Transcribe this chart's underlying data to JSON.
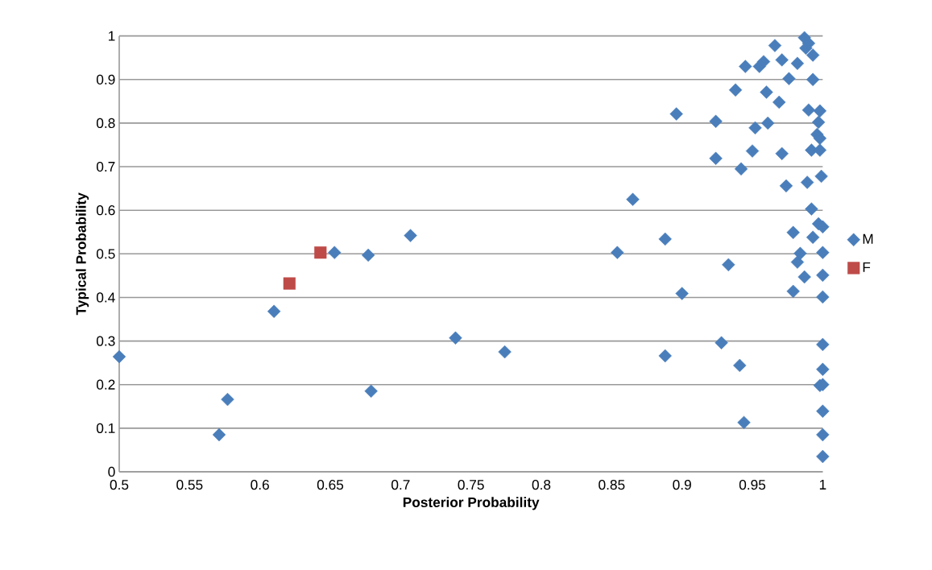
{
  "chart_data": {
    "type": "scatter",
    "xlabel": "Posterior Probability",
    "ylabel": "Typical Probability",
    "xlim": [
      0.5,
      1
    ],
    "ylim": [
      0,
      1
    ],
    "xticks": [
      0.5,
      0.55,
      0.6,
      0.65,
      0.7,
      0.75,
      0.8,
      0.85,
      0.9,
      0.95,
      1
    ],
    "yticks": [
      0,
      0.1,
      0.2,
      0.3,
      0.4,
      0.5,
      0.6,
      0.7,
      0.8,
      0.9,
      1
    ],
    "grid": "y",
    "legend": "right",
    "series": [
      {
        "name": "M",
        "color": "#4a7ebb",
        "marker": "diamond",
        "x": [
          0.5,
          0.577,
          0.571,
          0.61,
          0.653,
          0.677,
          0.679,
          0.707,
          0.739,
          0.774,
          0.854,
          0.865,
          0.888,
          0.888,
          0.896,
          0.9,
          0.966,
          0.987,
          0.99,
          0.988,
          0.993,
          0.945,
          0.955,
          0.958,
          0.971,
          0.982,
          0.976,
          0.993,
          0.938,
          0.96,
          0.969,
          0.924,
          0.952,
          0.961,
          0.99,
          0.998,
          0.997,
          0.996,
          0.998,
          0.992,
          0.998,
          0.95,
          0.971,
          0.924,
          0.942,
          0.974,
          0.989,
          0.999,
          0.992,
          0.997,
          1.0,
          0.979,
          0.993,
          0.984,
          0.982,
          1.0,
          0.933,
          0.987,
          1.0,
          0.979,
          1.0,
          0.928,
          1.0,
          0.941,
          1.0,
          0.998,
          1.0,
          0.944,
          1.0,
          1.0,
          1.0
        ],
        "values": [
          0.264,
          0.166,
          0.085,
          0.368,
          0.503,
          0.497,
          0.185,
          0.542,
          0.307,
          0.275,
          0.503,
          0.625,
          0.534,
          0.266,
          0.821,
          0.409,
          0.978,
          0.996,
          0.983,
          0.972,
          0.956,
          0.93,
          0.93,
          0.941,
          0.945,
          0.937,
          0.902,
          0.9,
          0.876,
          0.871,
          0.848,
          0.804,
          0.789,
          0.8,
          0.83,
          0.828,
          0.802,
          0.774,
          0.765,
          0.738,
          0.738,
          0.736,
          0.73,
          0.719,
          0.695,
          0.656,
          0.664,
          0.678,
          0.603,
          0.569,
          0.562,
          0.549,
          0.538,
          0.501,
          0.481,
          0.503,
          0.475,
          0.447,
          0.451,
          0.414,
          0.401,
          0.296,
          0.292,
          0.244,
          0.235,
          0.198,
          0.2,
          0.113,
          0.139,
          0.085,
          0.035
        ]
      },
      {
        "name": "F",
        "color": "#be4b48",
        "marker": "square",
        "x": [
          0.621,
          0.643
        ],
        "values": [
          0.432,
          0.503
        ]
      }
    ]
  }
}
